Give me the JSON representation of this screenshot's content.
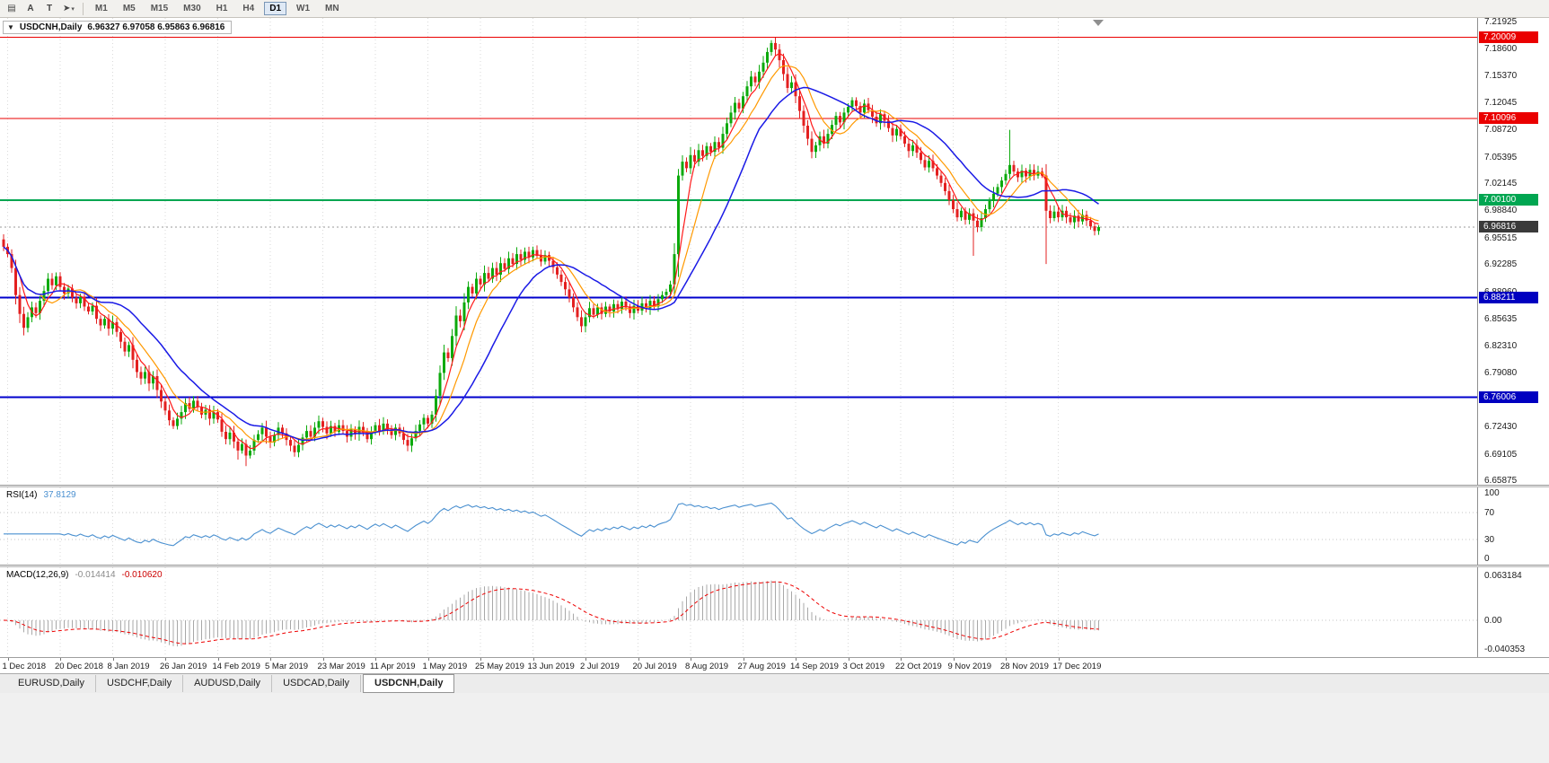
{
  "toolbar": {
    "tools": [
      {
        "name": "chart-window-icon",
        "glyph": "▤",
        "dropdown": false
      },
      {
        "name": "font-tool-icon",
        "glyph": "A",
        "dropdown": false
      },
      {
        "name": "text-label-tool-icon",
        "glyph": "T",
        "dropdown": false
      },
      {
        "name": "cursor-tool-icon",
        "glyph": "➤",
        "dropdown": true
      }
    ],
    "timeframes": [
      "M1",
      "M5",
      "M15",
      "M30",
      "H1",
      "H4",
      "D1",
      "W1",
      "MN"
    ],
    "active_timeframe": "D1"
  },
  "chart": {
    "symbol_label": "USDCNH,Daily",
    "ohlc_text": "6.96327 6.97058 6.95863 6.96816"
  },
  "chart_data": {
    "type": "candlestick",
    "symbol": "USDCNH",
    "timeframe": "Daily",
    "last_candle": {
      "open": 6.96327,
      "high": 6.97058,
      "low": 6.95863,
      "close": 6.96816
    },
    "price_min": 6.6533,
    "price_max": 7.2236,
    "price_axis_labels": [
      "7.21925",
      "7.18600",
      "7.15370",
      "7.12045",
      "7.08720",
      "7.05395",
      "7.02145",
      "6.98840",
      "6.95515",
      "6.92285",
      "6.88960",
      "6.85635",
      "6.82310",
      "6.79080",
      "6.75755",
      "6.72430",
      "6.69105",
      "6.65875"
    ],
    "up_color": "#0caa0c",
    "down_color": "#e32020",
    "first_open": 6.953,
    "closes": [
      6.944,
      6.935,
      6.918,
      6.885,
      6.862,
      6.845,
      6.858,
      6.87,
      6.863,
      6.878,
      6.89,
      6.905,
      6.897,
      6.908,
      6.895,
      6.887,
      6.893,
      6.882,
      6.875,
      6.883,
      6.871,
      6.865,
      6.872,
      6.856,
      6.848,
      6.856,
      6.844,
      6.852,
      6.84,
      6.828,
      6.816,
      6.824,
      6.806,
      6.791,
      6.783,
      6.791,
      6.777,
      6.786,
      6.769,
      6.755,
      6.744,
      6.732,
      6.725,
      6.734,
      6.742,
      6.753,
      6.746,
      6.756,
      6.748,
      6.739,
      6.745,
      6.734,
      6.742,
      6.733,
      6.718,
      6.709,
      6.717,
      6.706,
      6.695,
      6.703,
      6.689,
      6.695,
      6.708,
      6.715,
      6.723,
      6.712,
      6.705,
      6.714,
      6.723,
      6.716,
      6.708,
      6.701,
      6.693,
      6.702,
      6.711,
      6.719,
      6.712,
      6.723,
      6.731,
      6.724,
      6.716,
      6.725,
      6.718,
      6.726,
      6.719,
      6.712,
      6.721,
      6.715,
      6.724,
      6.717,
      6.709,
      6.718,
      6.726,
      6.719,
      6.728,
      6.721,
      6.714,
      6.723,
      6.716,
      6.708,
      6.701,
      6.71,
      6.719,
      6.727,
      6.735,
      6.728,
      6.739,
      6.762,
      6.79,
      6.815,
      6.808,
      6.835,
      6.86,
      6.853,
      6.876,
      6.895,
      6.887,
      6.905,
      6.898,
      6.912,
      6.905,
      6.918,
      6.91,
      6.924,
      6.917,
      6.93,
      6.923,
      6.935,
      6.928,
      6.938,
      6.931,
      6.94,
      6.933,
      6.926,
      6.934,
      6.927,
      6.919,
      6.91,
      6.901,
      6.892,
      6.882,
      6.87,
      6.858,
      6.847,
      6.858,
      6.869,
      6.861,
      6.87,
      6.862,
      6.871,
      6.865,
      6.874,
      6.868,
      6.877,
      6.87,
      6.863,
      6.872,
      6.866,
      6.875,
      6.869,
      6.878,
      6.871,
      6.88,
      6.885,
      6.889,
      6.898,
      6.935,
      7.031,
      7.048,
      7.04,
      7.056,
      7.048,
      7.062,
      7.055,
      7.067,
      7.06,
      7.072,
      7.065,
      7.082,
      7.095,
      7.108,
      7.12,
      7.113,
      7.128,
      7.14,
      7.152,
      7.145,
      7.158,
      7.169,
      7.182,
      7.193,
      7.185,
      7.172,
      7.155,
      7.138,
      7.145,
      7.128,
      7.11,
      7.092,
      7.076,
      7.06,
      7.068,
      7.079,
      7.07,
      7.082,
      7.093,
      7.104,
      7.096,
      7.108,
      7.115,
      7.123,
      7.116,
      7.108,
      7.119,
      7.111,
      7.103,
      7.095,
      7.106,
      7.098,
      7.089,
      7.08,
      7.088,
      7.079,
      7.07,
      7.061,
      7.068,
      7.059,
      7.05,
      7.041,
      7.049,
      7.04,
      7.031,
      7.022,
      7.012,
      7.001,
      6.99,
      6.98,
      6.988,
      6.977,
      6.985,
      6.976,
      6.968,
      6.979,
      6.99,
      7.0,
      7.009,
      7.017,
      7.025,
      7.033,
      7.044,
      7.036,
      7.029,
      7.037,
      7.03,
      7.038,
      7.031,
      7.036,
      7.031,
      6.988,
      6.979,
      6.987,
      6.98,
      6.988,
      6.98,
      6.974,
      6.982,
      6.975,
      6.983,
      6.976,
      6.969,
      6.9633,
      6.96816
    ],
    "wick_overrides": {
      "58": {
        "l": 6.684
      },
      "60": {
        "l": 6.676
      },
      "107": {
        "h": 6.77
      },
      "167": {
        "h": 7.039
      },
      "190": {
        "h": 7.1965
      },
      "240": {
        "l": 6.933
      },
      "249": {
        "h": 7.087
      },
      "258": {
        "l": 6.923
      },
      "271": {
        "h": 6.97058,
        "l": 6.95863
      }
    },
    "moving_averages": [
      {
        "period": 5,
        "color": "#ff1a1a",
        "width": 1.2
      },
      {
        "period": 10,
        "color": "#ff9900",
        "width": 1.2
      },
      {
        "period": 21,
        "color": "#1a1ae6",
        "width": 1.5
      }
    ],
    "levels": [
      {
        "price": 7.20009,
        "label": "7.20009",
        "color": "#ea0000",
        "badge": "#ea0000",
        "width": 1
      },
      {
        "price": 7.10096,
        "label": "7.10096",
        "color": "#ea0000",
        "badge": "#ea0000",
        "width": 1
      },
      {
        "price": 7.001,
        "label": "7.00100",
        "color": "#00a651",
        "badge": "#00a651",
        "width": 2
      },
      {
        "price": 6.88211,
        "label": "6.88211",
        "color": "#0000cd",
        "badge": "#0000c0",
        "width": 2
      },
      {
        "price": 6.76006,
        "label": "6.76006",
        "color": "#0000cd",
        "badge": "#0000c0",
        "width": 2
      }
    ],
    "current_price": {
      "price": 6.96816,
      "label": "6.96816",
      "line_color": "#9a9a9a",
      "badge": "#3a3a3a"
    },
    "date_ticks": [
      {
        "label": "1 Dec 2018",
        "idx": 1
      },
      {
        "label": "20 Dec 2018",
        "idx": 14
      },
      {
        "label": "8 Jan 2019",
        "idx": 27
      },
      {
        "label": "26 Jan 2019",
        "idx": 40
      },
      {
        "label": "14 Feb 2019",
        "idx": 53
      },
      {
        "label": "5 Mar 2019",
        "idx": 66
      },
      {
        "label": "23 Mar 2019",
        "idx": 79
      },
      {
        "label": "11 Apr 2019",
        "idx": 92
      },
      {
        "label": "1 May 2019",
        "idx": 105
      },
      {
        "label": "25 May 2019",
        "idx": 118
      },
      {
        "label": "13 Jun 2019",
        "idx": 131
      },
      {
        "label": "2 Jul 2019",
        "idx": 144
      },
      {
        "label": "20 Jul 2019",
        "idx": 157
      },
      {
        "label": "8 Aug 2019",
        "idx": 170
      },
      {
        "label": "27 Aug 2019",
        "idx": 183
      },
      {
        "label": "14 Sep 2019",
        "idx": 196
      },
      {
        "label": "3 Oct 2019",
        "idx": 209
      },
      {
        "label": "22 Oct 2019",
        "idx": 222
      },
      {
        "label": "9 Nov 2019",
        "idx": 235
      },
      {
        "label": "28 Nov 2019",
        "idx": 248
      },
      {
        "label": "17 Dec 2019",
        "idx": 261
      }
    ],
    "rsi": {
      "title": "RSI(14)",
      "value": "37.8129",
      "period": 14,
      "color": "#4a90d0",
      "levels": [
        100,
        70,
        30,
        0
      ],
      "level_lines": [
        70,
        30
      ]
    },
    "macd": {
      "title": "MACD(12,26,9)",
      "value_main": "-0.014414",
      "value_signal": "-0.010620",
      "fast": 12,
      "slow": 26,
      "signal_period": 9,
      "histogram_color": "#a8a8a8",
      "signal_color": "#ee0000",
      "axis_labels": [
        "0.063184",
        "0.00",
        "-0.040353"
      ],
      "axis_max": 0.063184,
      "axis_min": -0.040353
    }
  },
  "tabs": {
    "items": [
      "EURUSD,Daily",
      "USDCHF,Daily",
      "AUDUSD,Daily",
      "USDCAD,Daily",
      "USDCNH,Daily"
    ],
    "active_index": 4
  }
}
